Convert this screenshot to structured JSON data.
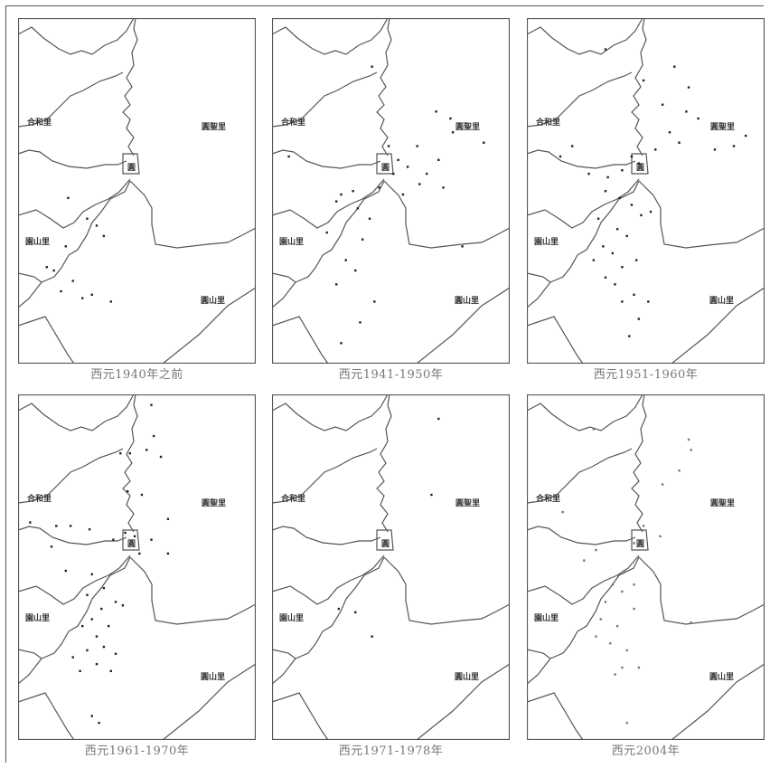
{
  "labels": {
    "west_north": "合和里",
    "east_north": "圓聖里",
    "west_south": "園山里",
    "east_south": "圓山里",
    "center": "圓"
  },
  "colors": {
    "boundary": "#555555",
    "dot": "#222222",
    "dot_light": "#777777",
    "caption": "#777777"
  },
  "panels": [
    {
      "caption": "西元1940年之前",
      "dots": [
        [
          0.21,
          0.52
        ],
        [
          0.29,
          0.58
        ],
        [
          0.33,
          0.6
        ],
        [
          0.36,
          0.63
        ],
        [
          0.2,
          0.66
        ],
        [
          0.15,
          0.73
        ],
        [
          0.23,
          0.76
        ],
        [
          0.27,
          0.81
        ],
        [
          0.31,
          0.8
        ],
        [
          0.39,
          0.82
        ],
        [
          0.18,
          0.79
        ],
        [
          0.12,
          0.72
        ]
      ]
    },
    {
      "caption": "西元1941-1950年",
      "dots": [
        [
          0.42,
          0.14
        ],
        [
          0.69,
          0.27
        ],
        [
          0.75,
          0.29
        ],
        [
          0.89,
          0.36
        ],
        [
          0.61,
          0.37
        ],
        [
          0.53,
          0.41
        ],
        [
          0.57,
          0.43
        ],
        [
          0.65,
          0.45
        ],
        [
          0.62,
          0.48
        ],
        [
          0.45,
          0.49
        ],
        [
          0.55,
          0.51
        ],
        [
          0.72,
          0.49
        ],
        [
          0.34,
          0.5
        ],
        [
          0.29,
          0.51
        ],
        [
          0.36,
          0.55
        ],
        [
          0.41,
          0.58
        ],
        [
          0.23,
          0.62
        ],
        [
          0.38,
          0.64
        ],
        [
          0.31,
          0.7
        ],
        [
          0.35,
          0.73
        ],
        [
          0.27,
          0.77
        ],
        [
          0.43,
          0.82
        ],
        [
          0.37,
          0.88
        ],
        [
          0.8,
          0.66
        ],
        [
          0.49,
          0.37
        ],
        [
          0.7,
          0.41
        ],
        [
          0.07,
          0.4
        ],
        [
          0.76,
          0.33
        ],
        [
          0.51,
          0.45
        ],
        [
          0.27,
          0.53
        ],
        [
          0.29,
          0.94
        ]
      ]
    },
    {
      "caption": "西元1951-1960年",
      "dots": [
        [
          0.33,
          0.09
        ],
        [
          0.62,
          0.14
        ],
        [
          0.49,
          0.18
        ],
        [
          0.68,
          0.2
        ],
        [
          0.57,
          0.25
        ],
        [
          0.67,
          0.27
        ],
        [
          0.72,
          0.29
        ],
        [
          0.92,
          0.34
        ],
        [
          0.87,
          0.37
        ],
        [
          0.64,
          0.36
        ],
        [
          0.54,
          0.38
        ],
        [
          0.47,
          0.42
        ],
        [
          0.4,
          0.44
        ],
        [
          0.34,
          0.46
        ],
        [
          0.33,
          0.5
        ],
        [
          0.39,
          0.52
        ],
        [
          0.44,
          0.54
        ],
        [
          0.48,
          0.57
        ],
        [
          0.52,
          0.56
        ],
        [
          0.3,
          0.58
        ],
        [
          0.38,
          0.61
        ],
        [
          0.42,
          0.63
        ],
        [
          0.32,
          0.66
        ],
        [
          0.36,
          0.68
        ],
        [
          0.28,
          0.7
        ],
        [
          0.46,
          0.7
        ],
        [
          0.4,
          0.72
        ],
        [
          0.33,
          0.75
        ],
        [
          0.37,
          0.77
        ],
        [
          0.45,
          0.8
        ],
        [
          0.51,
          0.82
        ],
        [
          0.4,
          0.82
        ],
        [
          0.47,
          0.87
        ],
        [
          0.43,
          0.92
        ],
        [
          0.19,
          0.37
        ],
        [
          0.14,
          0.4
        ],
        [
          0.6,
          0.33
        ],
        [
          0.26,
          0.45
        ],
        [
          0.79,
          0.38
        ],
        [
          0.44,
          0.4
        ]
      ]
    },
    {
      "caption": "西元1961-1970年",
      "dots": [
        [
          0.56,
          0.03
        ],
        [
          0.57,
          0.12
        ],
        [
          0.43,
          0.17
        ],
        [
          0.47,
          0.17
        ],
        [
          0.54,
          0.16
        ],
        [
          0.6,
          0.18
        ],
        [
          0.46,
          0.28
        ],
        [
          0.52,
          0.29
        ],
        [
          0.63,
          0.36
        ],
        [
          0.22,
          0.38
        ],
        [
          0.3,
          0.39
        ],
        [
          0.45,
          0.4
        ],
        [
          0.49,
          0.41
        ],
        [
          0.56,
          0.42
        ],
        [
          0.4,
          0.42
        ],
        [
          0.51,
          0.46
        ],
        [
          0.63,
          0.46
        ],
        [
          0.2,
          0.51
        ],
        [
          0.31,
          0.52
        ],
        [
          0.36,
          0.56
        ],
        [
          0.29,
          0.58
        ],
        [
          0.41,
          0.6
        ],
        [
          0.44,
          0.61
        ],
        [
          0.35,
          0.62
        ],
        [
          0.31,
          0.65
        ],
        [
          0.27,
          0.67
        ],
        [
          0.38,
          0.67
        ],
        [
          0.33,
          0.7
        ],
        [
          0.36,
          0.73
        ],
        [
          0.29,
          0.74
        ],
        [
          0.41,
          0.75
        ],
        [
          0.23,
          0.76
        ],
        [
          0.33,
          0.78
        ],
        [
          0.26,
          0.8
        ],
        [
          0.39,
          0.8
        ],
        [
          0.31,
          0.93
        ],
        [
          0.34,
          0.95
        ],
        [
          0.16,
          0.38
        ],
        [
          0.05,
          0.37
        ],
        [
          0.14,
          0.44
        ]
      ]
    },
    {
      "caption": "西元1971-1978年",
      "dots": [
        [
          0.7,
          0.07
        ],
        [
          0.67,
          0.29
        ],
        [
          0.35,
          0.63
        ],
        [
          0.28,
          0.62
        ],
        [
          0.42,
          0.7
        ]
      ]
    },
    {
      "caption": "西元2004年",
      "dots": [
        [
          0.28,
          0.1
        ],
        [
          0.68,
          0.13
        ],
        [
          0.69,
          0.16
        ],
        [
          0.64,
          0.22
        ],
        [
          0.57,
          0.26
        ],
        [
          0.56,
          0.41
        ],
        [
          0.45,
          0.43
        ],
        [
          0.29,
          0.45
        ],
        [
          0.24,
          0.48
        ],
        [
          0.41,
          0.51
        ],
        [
          0.36,
          0.55
        ],
        [
          0.45,
          0.55
        ],
        [
          0.4,
          0.57
        ],
        [
          0.33,
          0.6
        ],
        [
          0.45,
          0.62
        ],
        [
          0.31,
          0.65
        ],
        [
          0.38,
          0.67
        ],
        [
          0.29,
          0.7
        ],
        [
          0.35,
          0.72
        ],
        [
          0.42,
          0.74
        ],
        [
          0.47,
          0.79
        ],
        [
          0.4,
          0.79
        ],
        [
          0.37,
          0.81
        ],
        [
          0.69,
          0.66
        ],
        [
          0.15,
          0.34
        ],
        [
          0.49,
          0.38
        ],
        [
          0.42,
          0.95
        ]
      ]
    }
  ]
}
